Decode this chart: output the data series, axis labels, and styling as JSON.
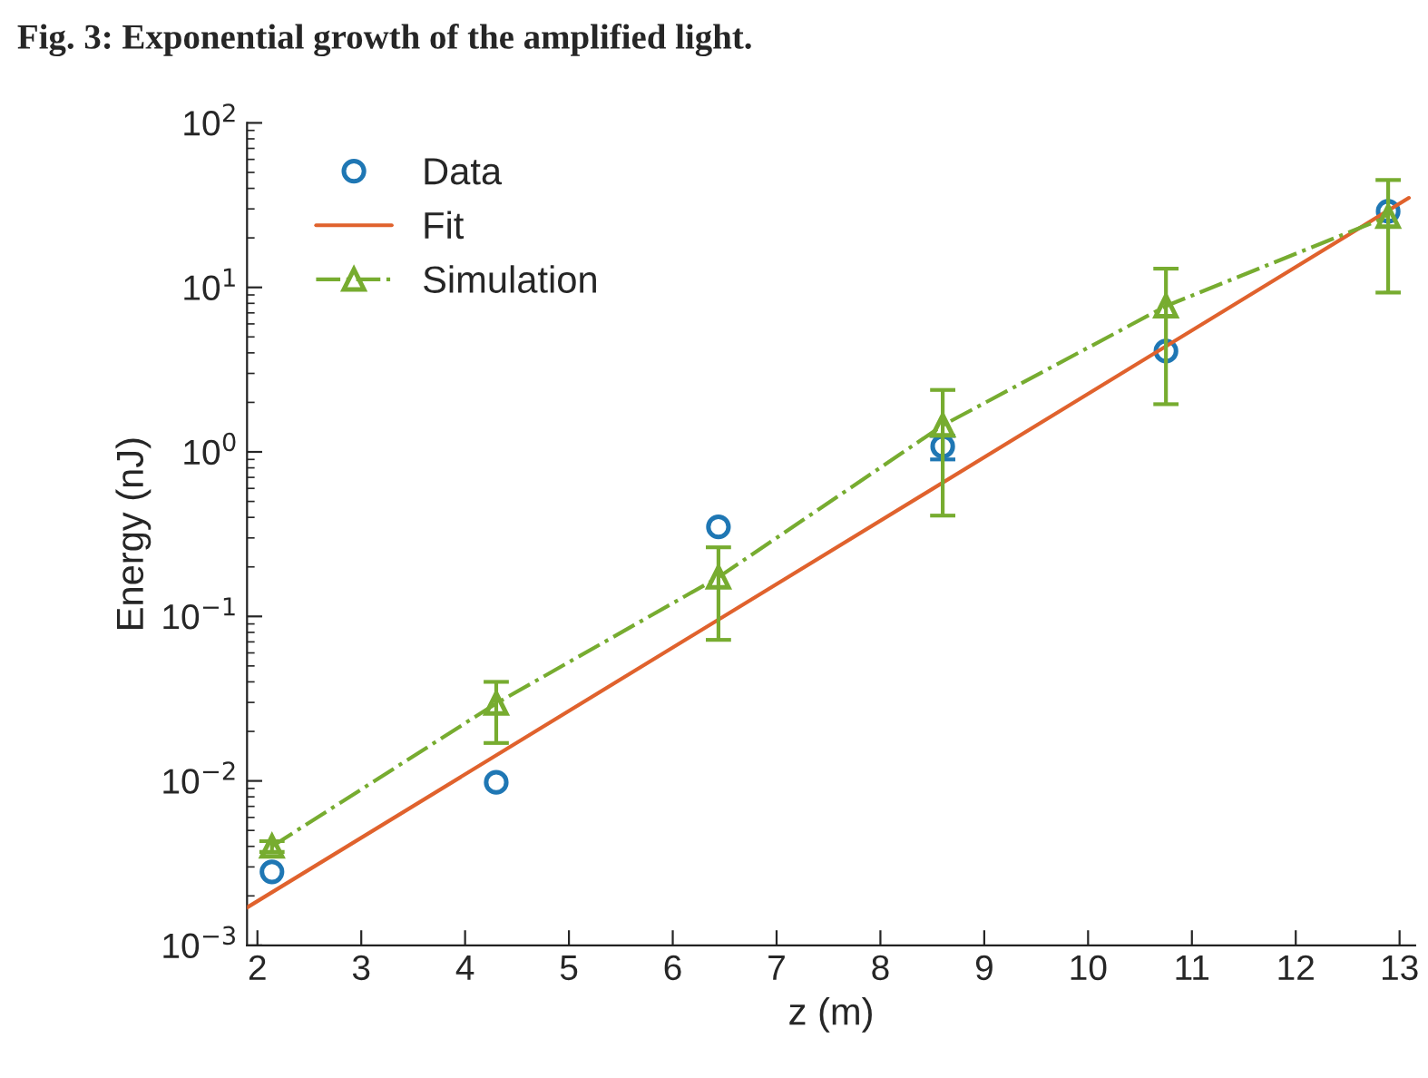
{
  "chart_data": {
    "type": "line",
    "title": "Fig. 3: Exponential growth of the amplified light.",
    "xlabel": "z (m)",
    "ylabel": "Energy (nJ)",
    "log": "y",
    "xlim": [
      1.9,
      13.15
    ],
    "xticks": [
      2,
      3,
      4,
      5,
      6,
      7,
      8,
      9,
      10,
      11,
      12,
      13
    ],
    "ylim": [
      0.001,
      100
    ],
    "yticks": [
      {
        "value": 0.001,
        "label": "10$^{−3}$"
      },
      {
        "value": 0.01,
        "label": "10$^{−2}$"
      },
      {
        "value": 0.1,
        "label": "10$^{−1}$"
      },
      {
        "value": 1,
        "label": "10$^{0}$"
      },
      {
        "value": 10,
        "label": "10$^{1}$"
      },
      {
        "value": 100,
        "label": "10$^{2}$"
      }
    ],
    "grid": false,
    "legend": "top left",
    "series": [
      {
        "name": "Data",
        "type": "scatter",
        "marker": "circle",
        "color": "#1f77b4",
        "x": [
          2.14,
          4.3,
          6.44,
          8.6,
          10.75,
          12.89
        ],
        "values": [
          0.0028,
          0.0098,
          0.35,
          1.08,
          4.1,
          29
        ],
        "errors": [
          null,
          null,
          null,
          [
            0.9,
            1.25
          ],
          null,
          null
        ]
      },
      {
        "name": "Fit",
        "marker": "none",
        "line_style": "solid",
        "color": "#e0622d",
        "x": [
          1.9,
          13.09
        ],
        "values": [
          0.0017,
          35
        ]
      },
      {
        "name": "Simulation",
        "marker": "triangle",
        "line_style": "dashdot",
        "color": "#77ac30",
        "x": [
          2.14,
          4.3,
          6.44,
          8.6,
          10.75,
          12.89
        ],
        "values": [
          0.004,
          0.0296,
          0.173,
          1.45,
          7.7,
          27
        ],
        "errors": [
          [
            0.0037,
            0.0043
          ],
          [
            0.017,
            0.04
          ],
          [
            0.072,
            0.263
          ],
          [
            0.41,
            2.38
          ],
          [
            1.95,
            13
          ],
          [
            9.3,
            45
          ]
        ]
      }
    ]
  }
}
